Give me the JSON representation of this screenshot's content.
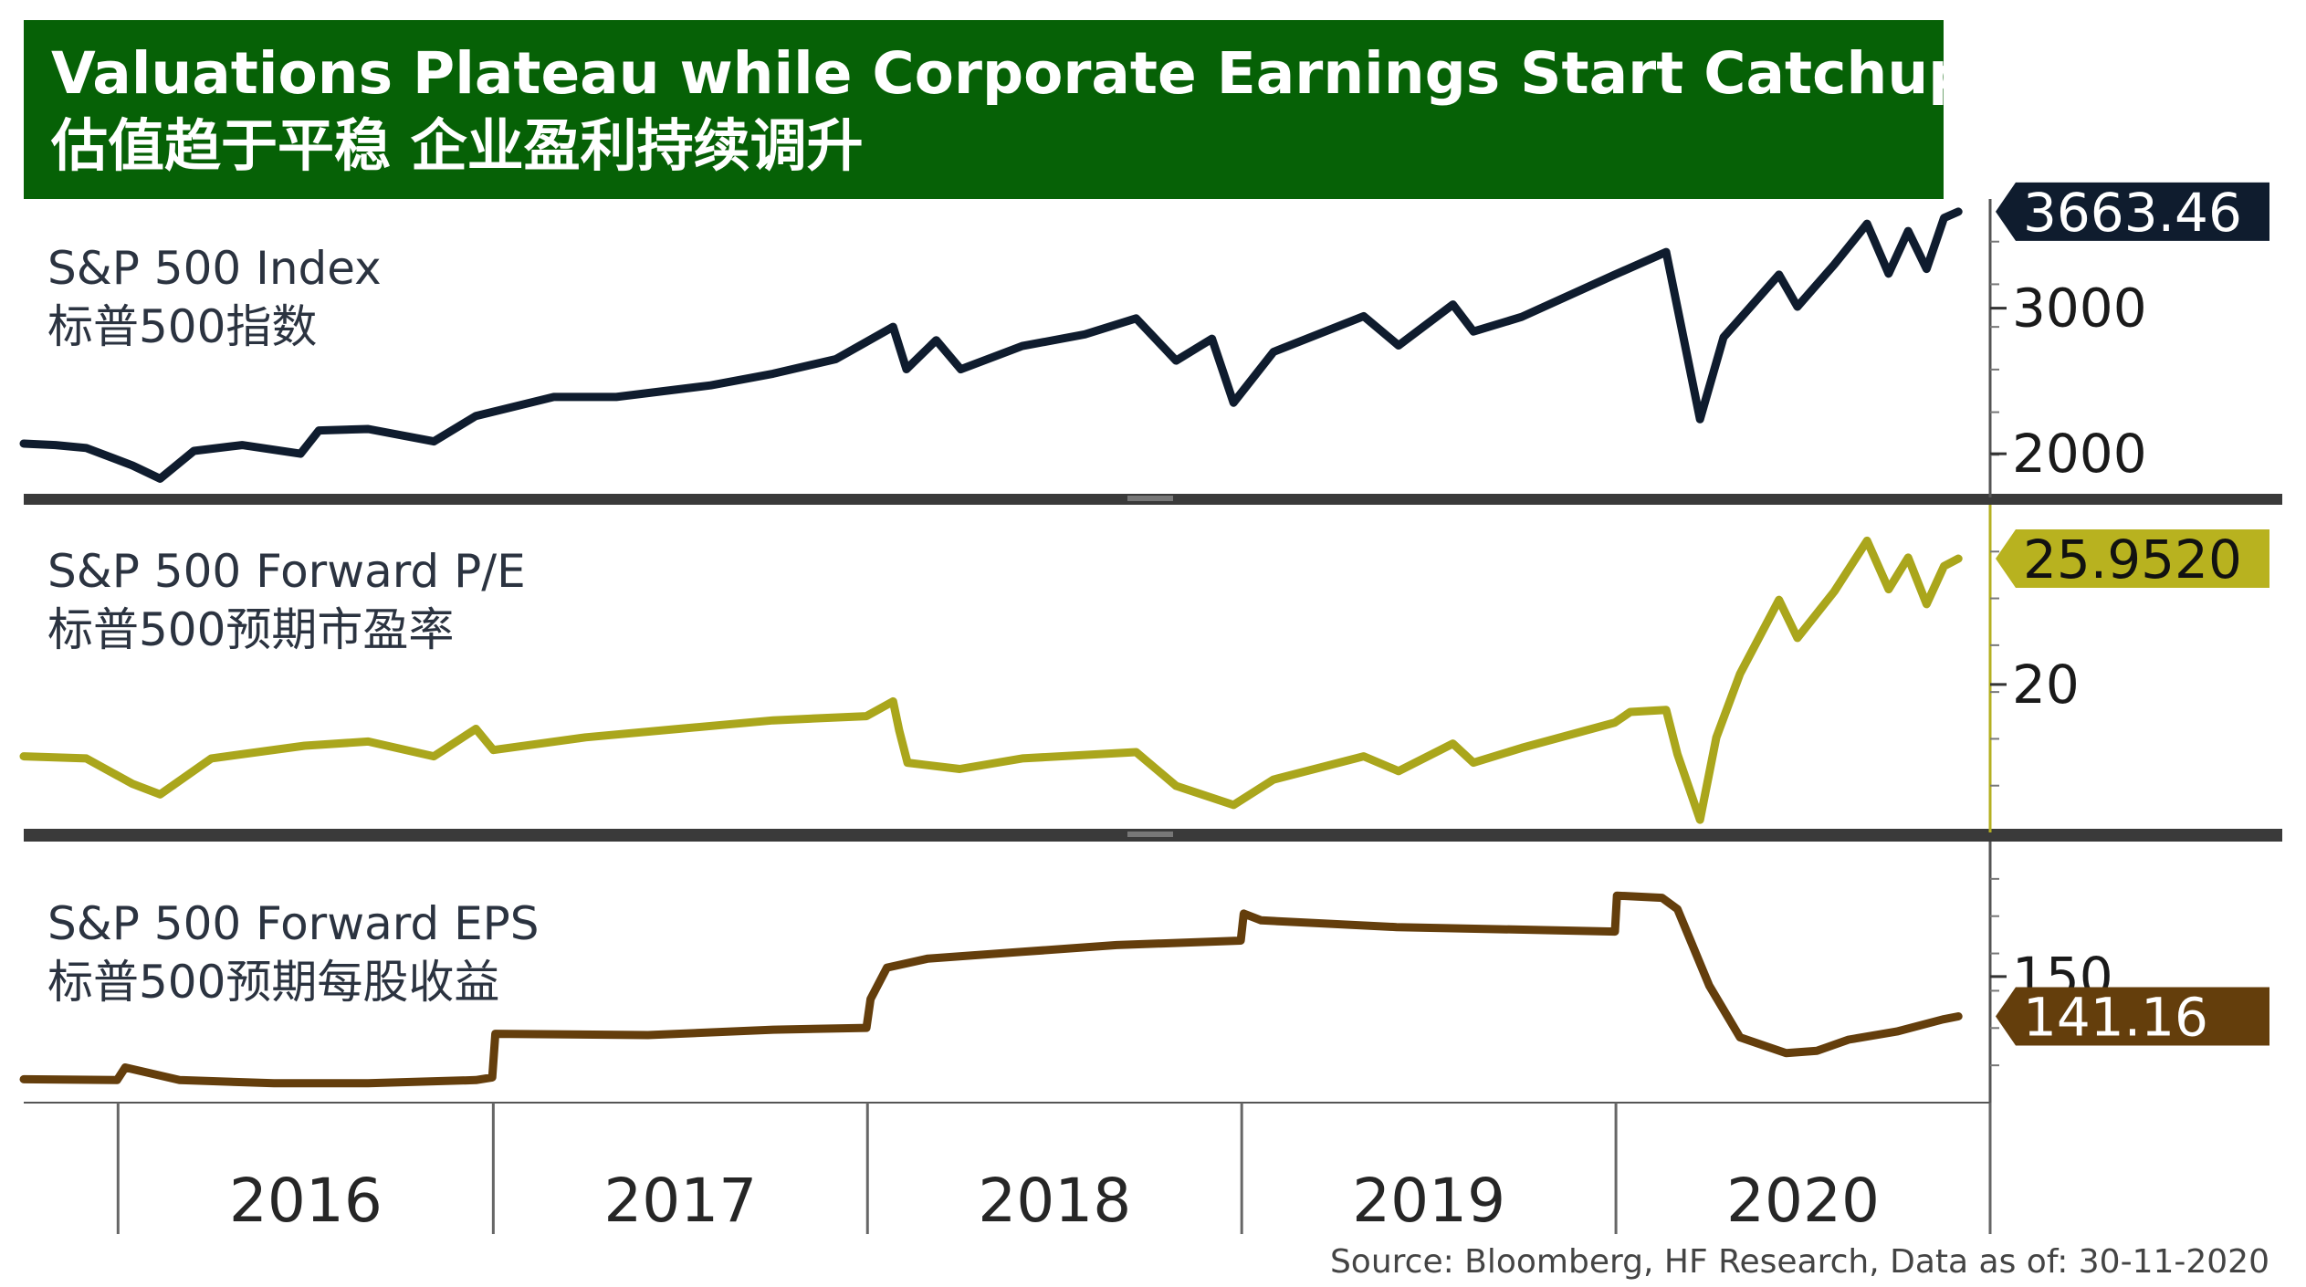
{
  "header": {
    "title_en": "Valuations Plateau while Corporate Earnings Start Catchup",
    "title_cn": "估值趋于平稳 企业盈利持续调升"
  },
  "source": "Source: Bloomberg, HF Research, Data as of: 30-11-2020",
  "chart_data": {
    "type": "line",
    "x_tick_labels": [
      "2016",
      "2017",
      "2018",
      "2019",
      "2020"
    ],
    "x_range": [
      "2015-10",
      "2020-12"
    ],
    "panels": [
      {
        "id": "index",
        "label_en": "S&P 500 Index",
        "label_cn": "标普500指数",
        "color": "#0f1c2e",
        "y_range": [
          1700,
          3750
        ],
        "y_ticks": [
          2000,
          3000
        ],
        "last_value_label": "3663.46",
        "tag_bg": "#0f1c2e",
        "tag_fg": "#ffffff",
        "series": [
          [
            "2015-10-01",
            2070
          ],
          [
            "2015-11-01",
            2060
          ],
          [
            "2015-12-01",
            2040
          ],
          [
            "2016-01-15",
            1920
          ],
          [
            "2016-02-11",
            1829
          ],
          [
            "2016-03-15",
            2020
          ],
          [
            "2016-05-01",
            2060
          ],
          [
            "2016-06-27",
            2000
          ],
          [
            "2016-07-15",
            2160
          ],
          [
            "2016-09-01",
            2170
          ],
          [
            "2016-11-04",
            2085
          ],
          [
            "2016-12-15",
            2260
          ],
          [
            "2017-03-01",
            2390
          ],
          [
            "2017-05-01",
            2390
          ],
          [
            "2017-08-01",
            2470
          ],
          [
            "2017-10-01",
            2550
          ],
          [
            "2017-12-01",
            2650
          ],
          [
            "2018-01-26",
            2872
          ],
          [
            "2018-02-08",
            2581
          ],
          [
            "2018-03-09",
            2780
          ],
          [
            "2018-04-02",
            2580
          ],
          [
            "2018-06-01",
            2740
          ],
          [
            "2018-08-01",
            2820
          ],
          [
            "2018-09-20",
            2930
          ],
          [
            "2018-10-29",
            2640
          ],
          [
            "2018-12-03",
            2790
          ],
          [
            "2018-12-24",
            2351
          ],
          [
            "2019-02-01",
            2700
          ],
          [
            "2019-04-30",
            2945
          ],
          [
            "2019-06-03",
            2744
          ],
          [
            "2019-07-26",
            3025
          ],
          [
            "2019-08-15",
            2840
          ],
          [
            "2019-10-01",
            2940
          ],
          [
            "2019-12-31",
            3230
          ],
          [
            "2020-02-19",
            3386
          ],
          [
            "2020-03-23",
            2237
          ],
          [
            "2020-04-15",
            2800
          ],
          [
            "2020-06-08",
            3230
          ],
          [
            "2020-06-26",
            3010
          ],
          [
            "2020-08-01",
            3300
          ],
          [
            "2020-09-02",
            3580
          ],
          [
            "2020-09-23",
            3237
          ],
          [
            "2020-10-12",
            3530
          ],
          [
            "2020-10-30",
            3270
          ],
          [
            "2020-11-16",
            3620
          ],
          [
            "2020-11-30",
            3663
          ]
        ]
      },
      {
        "id": "pe",
        "label_en": "S&P 500 Forward P/E",
        "label_cn": "标普500预期市盈率",
        "color": "#aaa61c",
        "y_range": [
          13,
          28.5
        ],
        "y_ticks": [
          20
        ],
        "last_value_label": "25.9520",
        "tag_bg": "#b8b21f",
        "tag_fg": "#111111",
        "series": [
          [
            "2015-10-01",
            16.6
          ],
          [
            "2015-12-01",
            16.5
          ],
          [
            "2016-01-15",
            15.3
          ],
          [
            "2016-02-11",
            14.8
          ],
          [
            "2016-04-01",
            16.5
          ],
          [
            "2016-07-01",
            17.1
          ],
          [
            "2016-09-01",
            17.3
          ],
          [
            "2016-11-04",
            16.6
          ],
          [
            "2016-12-15",
            17.9
          ],
          [
            "2017-01-01",
            16.9
          ],
          [
            "2017-04-01",
            17.5
          ],
          [
            "2017-07-01",
            17.9
          ],
          [
            "2017-10-01",
            18.3
          ],
          [
            "2017-12-31",
            18.5
          ],
          [
            "2018-01-26",
            19.2
          ],
          [
            "2018-02-01",
            17.8
          ],
          [
            "2018-02-09",
            16.3
          ],
          [
            "2018-04-01",
            16.0
          ],
          [
            "2018-06-01",
            16.5
          ],
          [
            "2018-09-20",
            16.8
          ],
          [
            "2018-10-29",
            15.2
          ],
          [
            "2018-12-24",
            14.3
          ],
          [
            "2019-02-01",
            15.5
          ],
          [
            "2019-04-30",
            16.6
          ],
          [
            "2019-06-03",
            15.9
          ],
          [
            "2019-07-26",
            17.2
          ],
          [
            "2019-08-15",
            16.3
          ],
          [
            "2019-10-01",
            17.0
          ],
          [
            "2019-12-31",
            18.2
          ],
          [
            "2020-01-15",
            18.7
          ],
          [
            "2020-02-19",
            18.8
          ],
          [
            "2020-03-01",
            16.7
          ],
          [
            "2020-03-23",
            13.6
          ],
          [
            "2020-04-08",
            17.5
          ],
          [
            "2020-05-01",
            20.5
          ],
          [
            "2020-06-08",
            24.0
          ],
          [
            "2020-06-26",
            22.2
          ],
          [
            "2020-08-01",
            24.4
          ],
          [
            "2020-09-02",
            26.8
          ],
          [
            "2020-09-23",
            24.5
          ],
          [
            "2020-10-12",
            26.0
          ],
          [
            "2020-10-30",
            23.8
          ],
          [
            "2020-11-16",
            25.6
          ],
          [
            "2020-11-30",
            25.952
          ]
        ]
      },
      {
        "id": "eps",
        "label_en": "S&P 500 Forward EPS",
        "label_cn": "标普500预期每股收益",
        "color": "#643e0c",
        "y_range": [
          122,
          180
        ],
        "y_ticks": [
          150
        ],
        "last_value_label": "141.16",
        "tag_bg": "#643e0c",
        "tag_fg": "#ffffff",
        "series": [
          [
            "2015-10-01",
            127.2
          ],
          [
            "2015-12-31",
            127.0
          ],
          [
            "2016-01-08",
            129.8
          ],
          [
            "2016-03-01",
            127.0
          ],
          [
            "2016-06-01",
            126.3
          ],
          [
            "2016-09-01",
            126.3
          ],
          [
            "2016-12-15",
            127.0
          ],
          [
            "2016-12-31",
            127.6
          ],
          [
            "2017-01-03",
            137.3
          ],
          [
            "2017-06-01",
            137.0
          ],
          [
            "2017-10-01",
            138.2
          ],
          [
            "2017-12-31",
            138.6
          ],
          [
            "2018-01-04",
            145.0
          ],
          [
            "2018-01-20",
            152.0
          ],
          [
            "2018-03-01",
            154.0
          ],
          [
            "2018-06-01",
            155.5
          ],
          [
            "2018-09-01",
            157.0
          ],
          [
            "2018-12-31",
            158.0
          ],
          [
            "2019-01-03",
            164.0
          ],
          [
            "2019-01-20",
            162.5
          ],
          [
            "2019-06-01",
            161.0
          ],
          [
            "2019-12-31",
            160.0
          ],
          [
            "2020-01-02",
            168.0
          ],
          [
            "2020-02-15",
            167.5
          ],
          [
            "2020-03-01",
            165.0
          ],
          [
            "2020-04-01",
            148.0
          ],
          [
            "2020-05-01",
            136.5
          ],
          [
            "2020-06-15",
            133.0
          ],
          [
            "2020-07-15",
            133.5
          ],
          [
            "2020-08-15",
            136.0
          ],
          [
            "2020-10-01",
            137.8
          ],
          [
            "2020-11-15",
            140.5
          ],
          [
            "2020-11-30",
            141.16
          ]
        ]
      }
    ]
  }
}
